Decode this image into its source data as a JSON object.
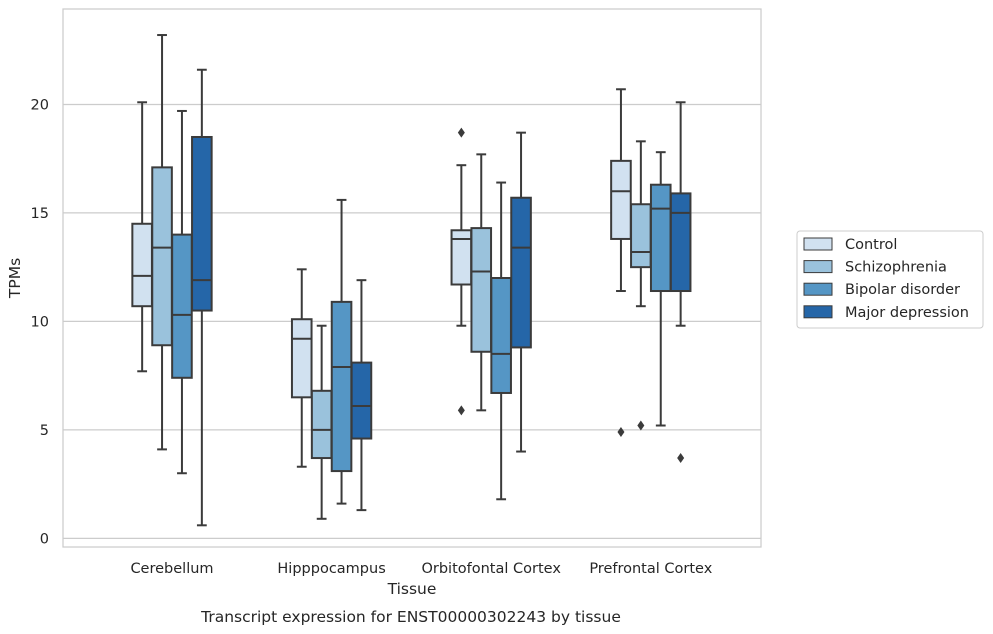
{
  "chart_data": {
    "type": "boxplot",
    "title": "",
    "caption": "Transcript expression for ENST00000302243 by tissue",
    "xlabel": "Tissue",
    "ylabel": "TPMs",
    "ylim": [
      -0.4,
      24.4
    ],
    "yticks": [
      0,
      5,
      10,
      15,
      20
    ],
    "grid": "horizontal",
    "legend_position": "right",
    "categories": [
      "Cerebellum",
      "Hipppocampus",
      "Orbitofontal Cortex",
      "Prefrontal Cortex"
    ],
    "series": [
      {
        "name": "Control",
        "color": "#d1e1f0",
        "boxes": [
          {
            "whisker_low": 7.7,
            "q1": 10.7,
            "median": 12.1,
            "q3": 14.5,
            "whisker_high": 20.1,
            "outliers": []
          },
          {
            "whisker_low": 3.3,
            "q1": 6.5,
            "median": 9.2,
            "q3": 10.1,
            "whisker_high": 12.4,
            "outliers": []
          },
          {
            "whisker_low": 9.8,
            "q1": 11.7,
            "median": 13.8,
            "q3": 14.2,
            "whisker_high": 17.2,
            "outliers": [
              18.7,
              5.9
            ]
          },
          {
            "whisker_low": 11.4,
            "q1": 13.8,
            "median": 16.0,
            "q3": 17.4,
            "whisker_high": 20.7,
            "outliers": [
              4.9
            ]
          }
        ]
      },
      {
        "name": "Schizophrenia",
        "color": "#9ac2dc",
        "boxes": [
          {
            "whisker_low": 4.1,
            "q1": 8.9,
            "median": 13.4,
            "q3": 17.1,
            "whisker_high": 23.2,
            "outliers": []
          },
          {
            "whisker_low": 0.9,
            "q1": 3.7,
            "median": 5.0,
            "q3": 6.8,
            "whisker_high": 9.8,
            "outliers": []
          },
          {
            "whisker_low": 5.9,
            "q1": 8.6,
            "median": 12.3,
            "q3": 14.3,
            "whisker_high": 17.7,
            "outliers": []
          },
          {
            "whisker_low": 10.7,
            "q1": 12.5,
            "median": 13.2,
            "q3": 15.4,
            "whisker_high": 18.3,
            "outliers": [
              5.2
            ]
          }
        ]
      },
      {
        "name": "Bipolar disorder",
        "color": "#5596c5",
        "boxes": [
          {
            "whisker_low": 3.0,
            "q1": 7.4,
            "median": 10.3,
            "q3": 14.0,
            "whisker_high": 19.7,
            "outliers": []
          },
          {
            "whisker_low": 1.6,
            "q1": 3.1,
            "median": 7.9,
            "q3": 10.9,
            "whisker_high": 15.6,
            "outliers": []
          },
          {
            "whisker_low": 1.8,
            "q1": 6.7,
            "median": 8.5,
            "q3": 12.0,
            "whisker_high": 16.4,
            "outliers": []
          },
          {
            "whisker_low": 5.2,
            "q1": 11.4,
            "median": 15.2,
            "q3": 16.3,
            "whisker_high": 17.8,
            "outliers": []
          }
        ]
      },
      {
        "name": "Major depression",
        "color": "#2566a8",
        "boxes": [
          {
            "whisker_low": 0.6,
            "q1": 10.5,
            "median": 11.9,
            "q3": 18.5,
            "whisker_high": 21.6,
            "outliers": []
          },
          {
            "whisker_low": 1.3,
            "q1": 4.6,
            "median": 6.1,
            "q3": 8.1,
            "whisker_high": 11.9,
            "outliers": []
          },
          {
            "whisker_low": 4.0,
            "q1": 8.8,
            "median": 13.4,
            "q3": 15.7,
            "whisker_high": 18.7,
            "outliers": []
          },
          {
            "whisker_low": 9.8,
            "q1": 11.4,
            "median": 15.0,
            "q3": 15.9,
            "whisker_high": 20.1,
            "outliers": [
              3.7
            ]
          }
        ]
      }
    ]
  }
}
